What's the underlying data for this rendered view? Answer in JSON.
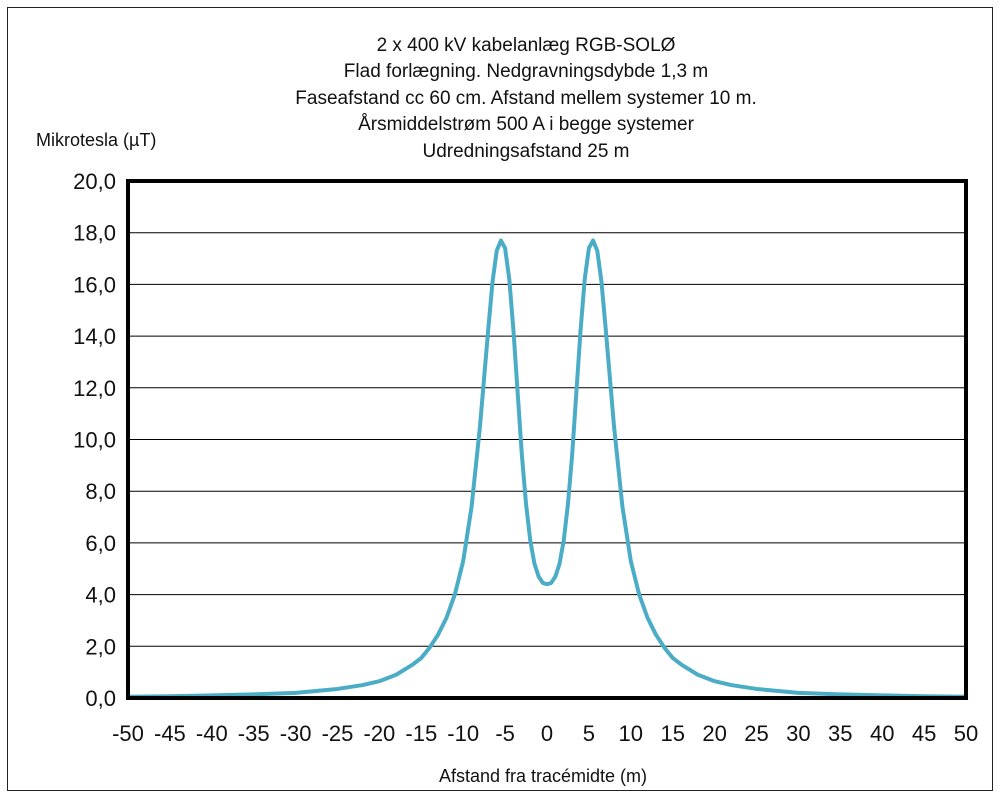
{
  "chart_data": {
    "type": "line",
    "title_lines": [
      "2 x 400 kV kabelanlæg RGB-SOLØ",
      "Flad forlægning. Nedgravningsdybde 1,3 m",
      "Faseafstand cc 60 cm. Afstand mellem systemer 10 m.",
      "Årsmiddelstrøm 500  A i begge systemer",
      "Udredningsafstand 25 m"
    ],
    "ylabel": "Mikrotesla (µT)",
    "xlabel": "Afstand fra tracémidte (m)",
    "xlim": [
      -50,
      50
    ],
    "ylim": [
      0,
      20
    ],
    "x_ticks": [
      "-50",
      "-45",
      "-40",
      "-35",
      "-30",
      "-25",
      "-20",
      "-15",
      "-10",
      "-5",
      "0",
      "5",
      "10",
      "15",
      "20",
      "25",
      "30",
      "35",
      "40",
      "45",
      "50"
    ],
    "y_ticks": [
      "0,0",
      "2,0",
      "4,0",
      "6,0",
      "8,0",
      "10,0",
      "12,0",
      "14,0",
      "16,0",
      "18,0",
      "20,0"
    ],
    "grid": "horizontal",
    "series": [
      {
        "color": "#4bacc6",
        "x": [
          -50,
          -45,
          -40,
          -35,
          -30,
          -25,
          -22,
          -20,
          -18,
          -16,
          -15,
          -14,
          -13,
          -12,
          -11,
          -10,
          -9,
          -8,
          -7,
          -6.5,
          -6,
          -5.5,
          -5,
          -4.5,
          -4,
          -3.5,
          -3,
          -2.5,
          -2,
          -1.5,
          -1,
          -0.5,
          0,
          0.5,
          1,
          1.5,
          2,
          2.5,
          3,
          3.5,
          4,
          4.5,
          5,
          5.5,
          6,
          6.5,
          7,
          8,
          9,
          10,
          11,
          12,
          13,
          14,
          15,
          16,
          18,
          20,
          22,
          25,
          30,
          35,
          40,
          45,
          50
        ],
        "y": [
          0.05,
          0.07,
          0.1,
          0.14,
          0.2,
          0.35,
          0.5,
          0.65,
          0.9,
          1.3,
          1.55,
          1.95,
          2.45,
          3.1,
          4.0,
          5.3,
          7.4,
          10.5,
          14.3,
          16.1,
          17.3,
          17.7,
          17.4,
          16.2,
          14.2,
          11.8,
          9.4,
          7.5,
          6.1,
          5.2,
          4.7,
          4.45,
          4.4,
          4.45,
          4.7,
          5.2,
          6.1,
          7.5,
          9.4,
          11.8,
          14.2,
          16.2,
          17.4,
          17.7,
          17.3,
          16.1,
          14.3,
          10.5,
          7.4,
          5.3,
          4.0,
          3.1,
          2.45,
          1.95,
          1.55,
          1.3,
          0.9,
          0.65,
          0.5,
          0.35,
          0.2,
          0.14,
          0.1,
          0.07,
          0.05
        ]
      }
    ]
  }
}
